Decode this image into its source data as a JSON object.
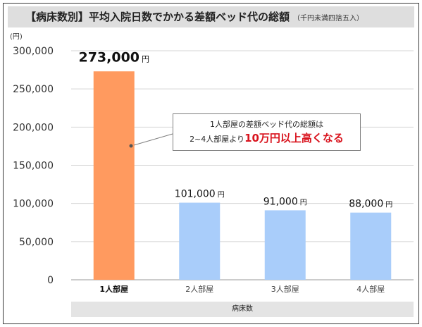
{
  "header": {
    "title": "【病床数別】平均入院日数でかかる差額ベッド代の総額",
    "note": "（千円未満四捨五入）"
  },
  "chart_data": {
    "type": "bar",
    "title": "【病床数別】平均入院日数でかかる差額ベッド代の総額",
    "unit_label": "(円)",
    "xlabel": "病床数",
    "ylabel": "",
    "ylim": [
      0,
      300000
    ],
    "yticks": [
      0,
      50000,
      100000,
      150000,
      200000,
      250000,
      300000
    ],
    "ytick_labels": [
      "0",
      "50,000",
      "100,000",
      "150,000",
      "200,000",
      "250,000",
      "300,000"
    ],
    "grid": true,
    "categories": [
      "1人部屋",
      "2人部屋",
      "3人部屋",
      "4人部屋"
    ],
    "values": [
      273000,
      101000,
      91000,
      88000
    ],
    "value_labels": [
      "273,000",
      "101,000",
      "91,000",
      "88,000"
    ],
    "value_unit": "円",
    "colors": [
      "#ff9a5f",
      "#a9cdfa",
      "#a9cdfa",
      "#a9cdfa"
    ],
    "highlight_index": 0
  },
  "annotation": {
    "line1": "1人部屋の差額ベッド代の総額は",
    "line2_prefix": "2~4人部屋より",
    "line2_highlight": "10万円以上高くなる",
    "highlight_color": "#d9141e"
  }
}
